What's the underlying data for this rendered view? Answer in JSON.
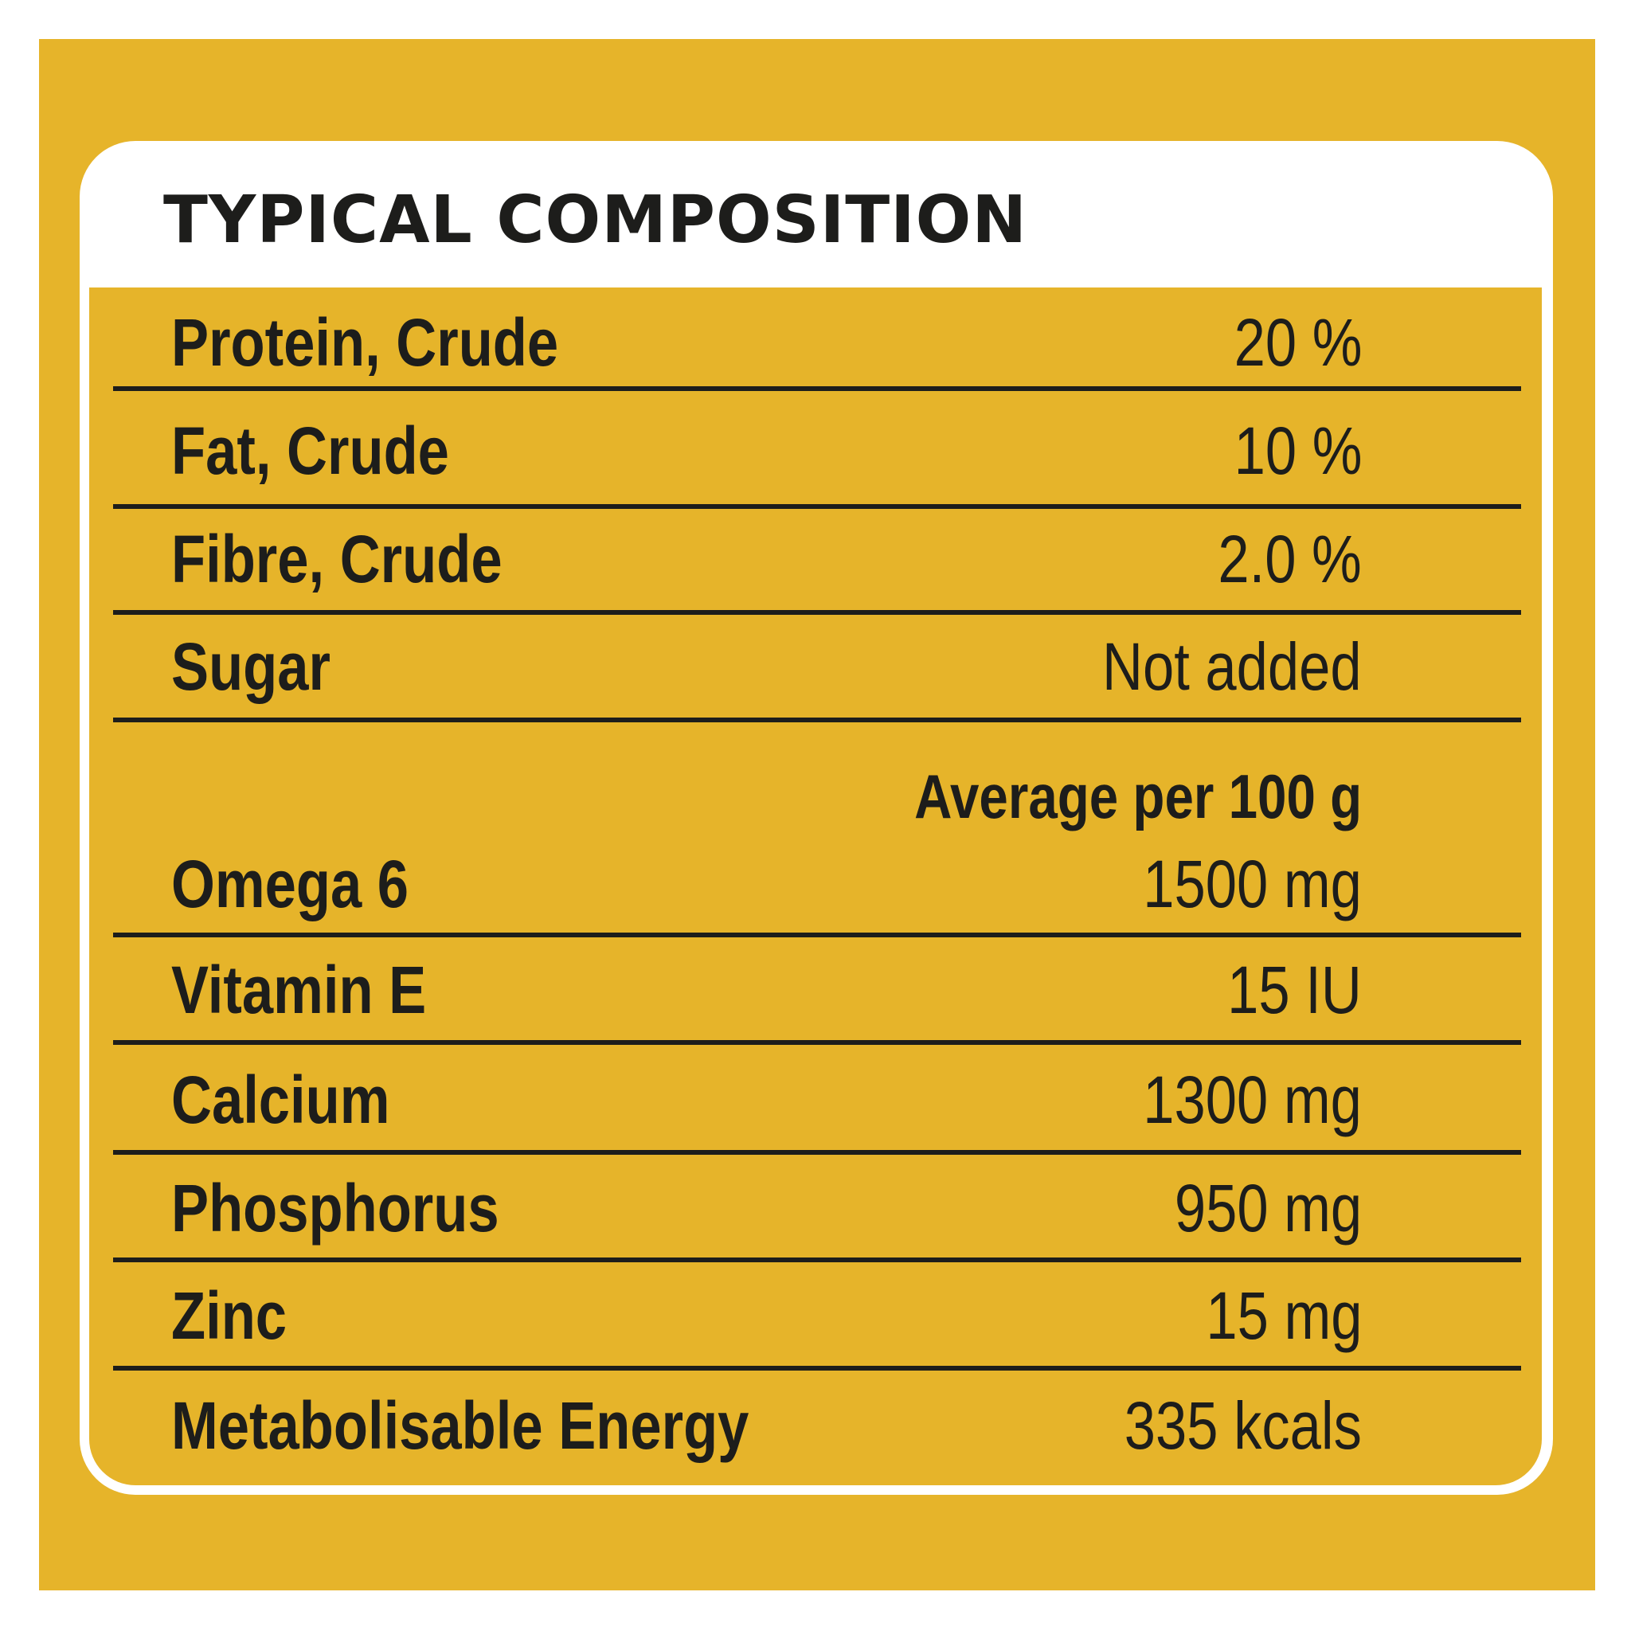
{
  "title": "TYPICAL COMPOSITION",
  "rows_top": [
    {
      "label": "Protein, Crude",
      "value": "20 %"
    },
    {
      "label": "Fat, Crude",
      "value": "10 %"
    },
    {
      "label": "Fibre, Crude",
      "value": "2.0 %"
    },
    {
      "label": "Sugar",
      "value": "Not added"
    }
  ],
  "subheader": "Average per 100 g",
  "rows_bottom": [
    {
      "label": "Omega 6",
      "value": "1500 mg"
    },
    {
      "label": "Vitamin E",
      "value": "15 IU"
    },
    {
      "label": "Calcium",
      "value": "1300 mg"
    },
    {
      "label": "Phosphorus",
      "value": "950 mg"
    },
    {
      "label": "Zinc",
      "value": "15 mg"
    },
    {
      "label": "Metabolisable Energy",
      "value": "335 kcals"
    }
  ],
  "colors": {
    "background": "#e6b42a",
    "card": "#ffffff",
    "text": "#1d1d1b"
  }
}
